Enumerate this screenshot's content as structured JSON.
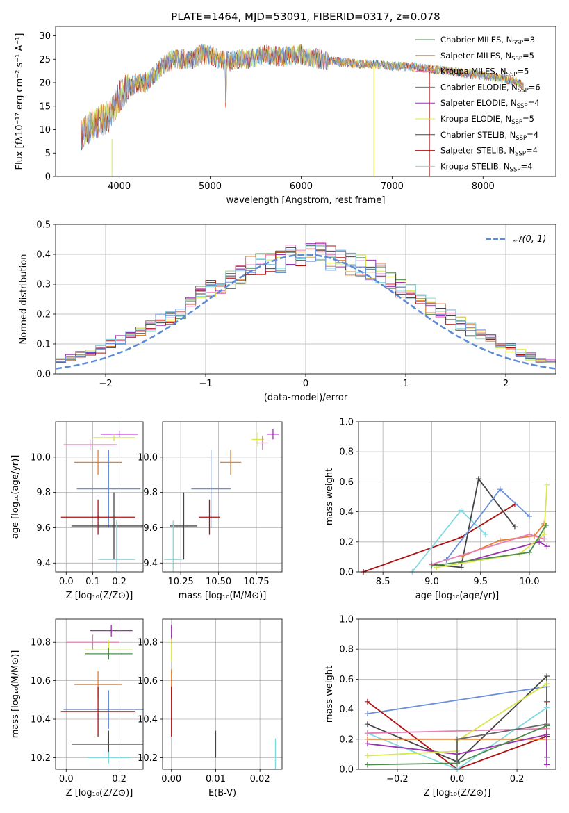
{
  "palette": [
    "#4e8c4e",
    "#9b30b0",
    "#d9e84a",
    "#444444",
    "#b01010",
    "#7fd9e0",
    "#6a8fdb",
    "#e87e2a",
    "#e67fb8",
    "#666666"
  ],
  "chart_data": [
    {
      "id": "spectrum",
      "type": "line",
      "title": "PLATE=1464, MJD=53091, FIBERID=0317, z=0.078",
      "xlabel": "wavelength [Angstrom, rest frame]",
      "ylabel": "Flux [fλ10⁻¹⁷ erg cm⁻² s⁻¹ A⁻¹]",
      "xlim": [
        3300,
        8800
      ],
      "ylim": [
        0,
        32
      ],
      "xticks": [
        4000,
        5000,
        6000,
        7000,
        8000
      ],
      "yticks": [
        0,
        5,
        10,
        15,
        20,
        25,
        30
      ],
      "continuum": [
        [
          3580,
          9
        ],
        [
          3700,
          11
        ],
        [
          3800,
          12
        ],
        [
          3900,
          13
        ],
        [
          4000,
          17
        ],
        [
          4100,
          19
        ],
        [
          4200,
          20
        ],
        [
          4300,
          20
        ],
        [
          4400,
          22
        ],
        [
          4500,
          24
        ],
        [
          4600,
          25
        ],
        [
          4700,
          25
        ],
        [
          4800,
          25
        ],
        [
          4900,
          26
        ],
        [
          5000,
          26
        ],
        [
          5100,
          25
        ],
        [
          5200,
          24.5
        ],
        [
          5300,
          25
        ],
        [
          5400,
          25
        ],
        [
          5600,
          26
        ],
        [
          5800,
          25.5
        ],
        [
          6000,
          26
        ],
        [
          6200,
          25
        ],
        [
          6400,
          24.5
        ],
        [
          6600,
          24
        ],
        [
          6800,
          24
        ],
        [
          7000,
          23.5
        ],
        [
          7200,
          23.5
        ],
        [
          7400,
          23
        ],
        [
          7600,
          22.5
        ],
        [
          7800,
          22
        ],
        [
          8000,
          21.5
        ],
        [
          8200,
          21
        ],
        [
          8400,
          20
        ],
        [
          8450,
          19
        ]
      ],
      "legend": [
        {
          "label": "Chabrier MILES, N",
          "sub": "SSP",
          "suffix": "=3",
          "color": "#4e8c4e"
        },
        {
          "label": "Salpeter MILES, N",
          "sub": "SSP",
          "suffix": "=5",
          "color": "#e87e2a"
        },
        {
          "label": "Kroupa MILES, N",
          "sub": "SSP",
          "suffix": "=5",
          "color": "#e67fb8"
        },
        {
          "label": "Chabrier ELODIE, N",
          "sub": "SSP",
          "suffix": "=6",
          "color": "#4e8c4e"
        },
        {
          "label": "Salpeter ELODIE, N",
          "sub": "SSP",
          "suffix": "=4",
          "color": "#9b30b0"
        },
        {
          "label": "Kroupa ELODIE, N",
          "sub": "SSP",
          "suffix": "=5",
          "color": "#d9e84a"
        },
        {
          "label": "Chabrier STELIB, N",
          "sub": "SSP",
          "suffix": "=4",
          "color": "#444444"
        },
        {
          "label": "Salpeter STELIB, N",
          "sub": "SSP",
          "suffix": "=4",
          "color": "#b01010"
        },
        {
          "label": "Kroupa STELIB, N",
          "sub": "SSP",
          "suffix": "=4",
          "color": "#7fd9e0"
        }
      ]
    },
    {
      "id": "residuals",
      "type": "histogram",
      "xlabel": "(data-model)/error",
      "ylabel": "Normed distribution",
      "xlim": [
        -2.5,
        2.5
      ],
      "ylim": [
        0,
        0.5
      ],
      "xticks": [
        -2,
        -1,
        0,
        1,
        2
      ],
      "yticks": [
        0.0,
        0.1,
        0.2,
        0.3,
        0.4,
        0.5
      ],
      "legend": "𝒩(0, 1)",
      "gaussian": {
        "mu": 0,
        "sigma": 1,
        "color": "#5b8bd6"
      },
      "bin_width": 0.1,
      "hist_base": [
        0.02,
        0.025,
        0.03,
        0.04,
        0.045,
        0.055,
        0.065,
        0.075,
        0.085,
        0.1,
        0.11,
        0.125,
        0.14,
        0.16,
        0.175,
        0.19,
        0.215,
        0.24,
        0.26,
        0.28,
        0.3,
        0.31,
        0.33,
        0.35,
        0.36,
        0.375,
        0.385,
        0.39,
        0.395,
        0.4,
        0.395,
        0.39,
        0.385,
        0.375,
        0.36,
        0.345,
        0.33,
        0.31,
        0.29,
        0.27,
        0.25,
        0.23,
        0.21,
        0.19,
        0.17,
        0.15,
        0.13,
        0.115,
        0.1,
        0.085,
        0.07,
        0.06,
        0.05,
        0.045,
        0.035,
        0.03,
        0.025,
        0.022,
        0.02
      ]
    },
    {
      "id": "age-vs-Z",
      "type": "errorbar",
      "xlabel": "Z [log₁₀(Z/Z⊙)]",
      "ylabel": "age  [log₁₀(age/yr)]",
      "xlim": [
        -0.04,
        0.29
      ],
      "ylim": [
        9.35,
        10.2
      ],
      "xticks": [
        0.0,
        0.1,
        0.2
      ],
      "yticks": [
        9.4,
        9.6,
        9.8,
        10.0
      ],
      "points": [
        {
          "x": 0.2,
          "y": 10.13,
          "xe": 0.07,
          "ye": 0.02,
          "color": "#9b30b0"
        },
        {
          "x": 0.18,
          "y": 10.11,
          "xe": 0.08,
          "ye": 0.02,
          "color": "#d9e84a"
        },
        {
          "x": 0.09,
          "y": 10.07,
          "xe": 0.1,
          "ye": 0.03,
          "color": "#e67fb8"
        },
        {
          "x": 0.12,
          "y": 9.97,
          "xe": 0.09,
          "ye": 0.07,
          "color": "#e87e2a"
        },
        {
          "x": 0.16,
          "y": 9.82,
          "xe": 0.12,
          "ye": 0.22,
          "color": "#6a8fdb"
        },
        {
          "x": 0.12,
          "y": 9.66,
          "xe": 0.14,
          "ye": 0.1,
          "color": "#b01010"
        },
        {
          "x": 0.18,
          "y": 9.61,
          "xe": 0.16,
          "ye": 0.19,
          "color": "#444444"
        },
        {
          "x": 0.19,
          "y": 9.42,
          "xe": 0.07,
          "ye": 0.22,
          "color": "#7fd9e0"
        }
      ]
    },
    {
      "id": "age-vs-mass",
      "type": "errorbar",
      "xlabel": "mass [log₁₀(M/M⊙)]",
      "ylabel": "",
      "xlim": [
        10.13,
        10.92
      ],
      "ylim": [
        9.35,
        10.2
      ],
      "xticks": [
        10.25,
        10.5,
        10.75
      ],
      "yticks": [
        9.4,
        9.6,
        9.8,
        10.0
      ],
      "points": [
        {
          "x": 10.86,
          "y": 10.13,
          "xe": 0.04,
          "ye": 0.03,
          "color": "#9b30b0"
        },
        {
          "x": 10.76,
          "y": 10.1,
          "xe": 0.04,
          "ye": 0.04,
          "color": "#d9e84a"
        },
        {
          "x": 10.79,
          "y": 10.08,
          "xe": 0.04,
          "ye": 0.04,
          "color": "#e67fb8"
        },
        {
          "x": 10.58,
          "y": 9.97,
          "xe": 0.07,
          "ye": 0.07,
          "color": "#e87e2a"
        },
        {
          "x": 10.45,
          "y": 9.82,
          "xe": 0.13,
          "ye": 0.22,
          "color": "#6a8fdb"
        },
        {
          "x": 10.44,
          "y": 9.66,
          "xe": 0.07,
          "ye": 0.1,
          "color": "#b01010"
        },
        {
          "x": 10.27,
          "y": 9.61,
          "xe": 0.09,
          "ye": 0.19,
          "color": "#444444"
        },
        {
          "x": 10.2,
          "y": 9.42,
          "xe": 0.06,
          "ye": 0.22,
          "color": "#7fd9e0"
        }
      ]
    },
    {
      "id": "weight-vs-age",
      "type": "line",
      "xlabel": "age  [log₁₀(age/yr)]",
      "ylabel": "mass weight",
      "xlim": [
        8.25,
        10.27
      ],
      "ylim": [
        0,
        1.0
      ],
      "xticks": [
        8.5,
        9.0,
        9.5,
        10.0
      ],
      "yticks": [
        0.0,
        0.2,
        0.4,
        0.6,
        0.8,
        1.0
      ],
      "series": [
        {
          "color": "#b01010",
          "x": [
            8.3,
            9.3,
            9.85
          ],
          "y": [
            0.0,
            0.23,
            0.45
          ]
        },
        {
          "color": "#7fd9e0",
          "x": [
            8.8,
            9.3,
            9.55
          ],
          "y": [
            0.0,
            0.41,
            0.25
          ]
        },
        {
          "color": "#444444",
          "x": [
            9.0,
            9.3,
            9.48,
            9.85
          ],
          "y": [
            0.05,
            0.03,
            0.62,
            0.3
          ]
        },
        {
          "color": "#6a8fdb",
          "x": [
            9.15,
            9.7,
            10.0
          ],
          "y": [
            0.08,
            0.55,
            0.37
          ]
        },
        {
          "color": "#e87e2a",
          "x": [
            9.3,
            9.7,
            10.05,
            10.15
          ],
          "y": [
            0.1,
            0.21,
            0.24,
            0.32
          ]
        },
        {
          "color": "#9b30b0",
          "x": [
            9.3,
            10.1,
            10.18
          ],
          "y": [
            0.06,
            0.2,
            0.17
          ]
        },
        {
          "color": "#d9e84a",
          "x": [
            9.05,
            9.9,
            10.15,
            10.18
          ],
          "y": [
            0.03,
            0.12,
            0.25,
            0.58
          ]
        },
        {
          "color": "#e67fb8",
          "x": [
            9.0,
            10.0,
            10.15
          ],
          "y": [
            0.05,
            0.25,
            0.22
          ]
        },
        {
          "color": "#4e8c4e",
          "x": [
            9.0,
            10.0,
            10.17
          ],
          "y": [
            0.04,
            0.13,
            0.31
          ]
        }
      ]
    },
    {
      "id": "mass-vs-Z",
      "type": "errorbar",
      "xlabel": "Z [log₁₀(Z/Z⊙)]",
      "ylabel": "mass [log₁₀(M/M⊙)]",
      "xlim": [
        -0.04,
        0.29
      ],
      "ylim": [
        10.14,
        10.92
      ],
      "xticks": [
        0.0,
        0.2
      ],
      "yticks": [
        10.2,
        10.4,
        10.6,
        10.8
      ],
      "points": [
        {
          "x": 0.17,
          "y": 10.86,
          "xe": 0.08,
          "ye": 0.03,
          "color": "#9b30b0"
        },
        {
          "x": 0.1,
          "y": 10.8,
          "xe": 0.1,
          "ye": 0.04,
          "color": "#e67fb8"
        },
        {
          "x": 0.16,
          "y": 10.76,
          "xe": 0.09,
          "ye": 0.05,
          "color": "#d9e84a"
        },
        {
          "x": 0.16,
          "y": 10.74,
          "xe": 0.09,
          "ye": 0.03,
          "color": "#4e8c4e"
        },
        {
          "x": 0.12,
          "y": 10.58,
          "xe": 0.09,
          "ye": 0.07,
          "color": "#e87e2a"
        },
        {
          "x": 0.16,
          "y": 10.45,
          "xe": 0.17,
          "ye": 0.1,
          "color": "#6a8fdb"
        },
        {
          "x": 0.12,
          "y": 10.44,
          "xe": 0.14,
          "ye": 0.13,
          "color": "#b01010"
        },
        {
          "x": 0.16,
          "y": 10.27,
          "xe": 0.14,
          "ye": 0.07,
          "color": "#444444"
        },
        {
          "x": 0.16,
          "y": 10.2,
          "xe": 0.08,
          "ye": 0.03,
          "color": "#7fd9e0"
        }
      ]
    },
    {
      "id": "mass-vs-EBV",
      "type": "errorbar",
      "xlabel": "E(B-V)",
      "ylabel": "",
      "xlim": [
        -0.002,
        0.025
      ],
      "ylim": [
        10.14,
        10.92
      ],
      "xticks": [
        0.0,
        0.01,
        0.02
      ],
      "yticks": [
        10.2,
        10.4,
        10.6,
        10.8
      ],
      "points": [
        {
          "x": 0.0,
          "y": 10.84,
          "xe": 0,
          "ye": 0.05,
          "color": "#9b30b0"
        },
        {
          "x": 0.0,
          "y": 10.76,
          "xe": 0,
          "ye": 0.06,
          "color": "#d9e84a"
        },
        {
          "x": 0.0,
          "y": 10.58,
          "xe": 0,
          "ye": 0.08,
          "color": "#e87e2a"
        },
        {
          "x": 0.0,
          "y": 10.44,
          "xe": 0,
          "ye": 0.13,
          "color": "#b01010"
        },
        {
          "x": 0.01,
          "y": 10.27,
          "xe": 0,
          "ye": 0.07,
          "color": "#444444"
        },
        {
          "x": 0.0235,
          "y": 10.2,
          "xe": 0,
          "ye": 0.1,
          "color": "#7fd9e0"
        }
      ]
    },
    {
      "id": "weight-vs-Z",
      "type": "line",
      "xlabel": "Z [log₁₀(Z/Z⊙)]",
      "ylabel": "mass weight",
      "xlim": [
        -0.33,
        0.33
      ],
      "ylim": [
        0,
        1.0
      ],
      "xticks": [
        -0.2,
        0.0,
        0.2
      ],
      "yticks": [
        0.0,
        0.2,
        0.4,
        0.6,
        0.8,
        1.0
      ],
      "series": [
        {
          "color": "#6a8fdb",
          "x": [
            -0.3,
            0.3
          ],
          "y": [
            0.37,
            0.55
          ]
        },
        {
          "color": "#b01010",
          "x": [
            -0.3,
            0.0,
            0.3,
            0.3
          ],
          "y": [
            0.45,
            0.0,
            0.22,
            0.45
          ]
        },
        {
          "color": "#444444",
          "x": [
            -0.3,
            0.0,
            0.3,
            0.3
          ],
          "y": [
            0.3,
            0.05,
            0.62,
            0.08
          ]
        },
        {
          "color": "#7fd9e0",
          "x": [
            -0.3,
            0.0,
            0.3
          ],
          "y": [
            0.24,
            0.0,
            0.41
          ]
        },
        {
          "color": "#e67fb8",
          "x": [
            -0.3,
            0.3
          ],
          "y": [
            0.24,
            0.27
          ]
        },
        {
          "color": "#e87e2a",
          "x": [
            -0.3,
            0.3
          ],
          "y": [
            0.2,
            0.2
          ]
        },
        {
          "color": "#9b30b0",
          "x": [
            -0.3,
            0.0,
            0.3,
            0.3
          ],
          "y": [
            0.17,
            0.1,
            0.23,
            0.03
          ]
        },
        {
          "color": "#d9e84a",
          "x": [
            -0.3,
            0.0,
            0.0,
            0.3
          ],
          "y": [
            0.09,
            0.12,
            0.19,
            0.57
          ]
        },
        {
          "color": "#4e8c4e",
          "x": [
            -0.3,
            0.0,
            0.3
          ],
          "y": [
            0.03,
            0.04,
            0.29
          ]
        },
        {
          "color": "#666666",
          "x": [
            0.0,
            0.0,
            0.3
          ],
          "y": [
            0.05,
            0.2,
            0.3
          ]
        }
      ]
    }
  ]
}
